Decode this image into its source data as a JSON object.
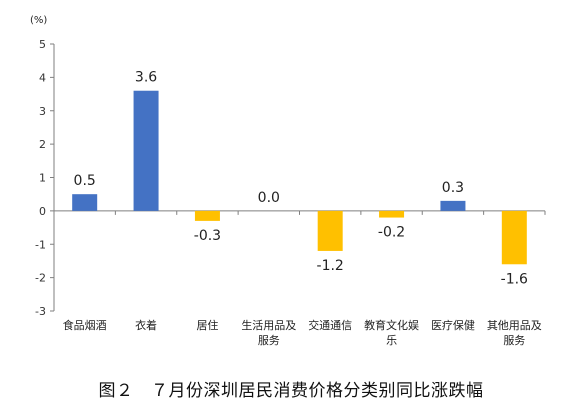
{
  "chart_data": {
    "type": "bar",
    "unit": "(%)",
    "categories": [
      "食品烟酒",
      "衣着",
      "居住",
      "生活用品及服务",
      "交通通信",
      "教育文化娱乐",
      "医疗保健",
      "其他用品及服务"
    ],
    "values": [
      0.5,
      3.6,
      -0.3,
      0.0,
      -1.2,
      -0.2,
      0.3,
      -1.6
    ],
    "data_labels": [
      "0.5",
      "3.6",
      "-0.3",
      "0.0",
      "-1.2",
      "-0.2",
      "0.3",
      "-1.6"
    ],
    "y_ticks": [
      "5",
      "4",
      "3",
      "2",
      "1",
      "0",
      "-1",
      "-2",
      "-3"
    ],
    "ylim": [
      -3,
      5
    ],
    "grid": false,
    "colors": {
      "positive": "#4472C4",
      "negative": "#FFC000",
      "axis": "#7f7f7f"
    },
    "caption": "图２　７月份深圳居民消费价格分类别同比涨跌幅"
  }
}
